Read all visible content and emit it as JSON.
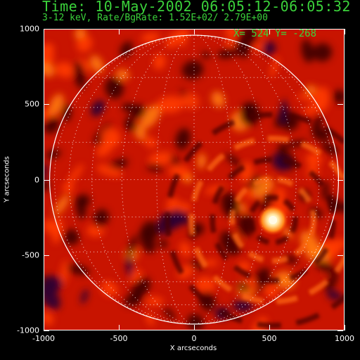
{
  "header": {
    "title": "Time: 10-May-2002 06:05:12-06:05:32",
    "subtitle": "3-12 keV, Rate/BgRate:  1.52E+02/  2.79E+00",
    "cursor_readout": "X=  524 Y= -268"
  },
  "axes": {
    "x_label": "X arcseconds",
    "y_label": "Y arcseconds",
    "x_ticks": [
      "-1000",
      "-500",
      "0",
      "500",
      "1000"
    ],
    "y_ticks": [
      "1000",
      "500",
      "0",
      "-500",
      "-1000"
    ],
    "x_range": [
      -1000,
      1000
    ],
    "y_range": [
      -1000,
      1000
    ]
  },
  "image": {
    "colormap": "red-temperature",
    "solar_disk_radius_arcsec": 960,
    "bright_source": {
      "x": 524,
      "y": -268
    },
    "colors": {
      "background": "#000000",
      "text": "#3bd23b",
      "base": "#c81400",
      "hot": "#ffd890",
      "dark": "#2a0033",
      "limb": "#ffffff"
    }
  }
}
